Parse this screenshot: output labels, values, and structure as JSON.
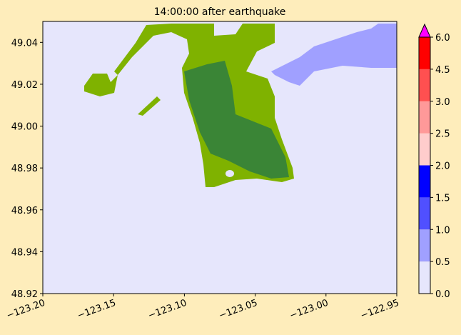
{
  "chart_data": {
    "type": "map",
    "title": "14:00:00 after earthquake",
    "xlim": [
      -123.2,
      -122.95
    ],
    "xticks": [
      {
        "value": -123.2,
        "label": "−123.20"
      },
      {
        "value": -123.15,
        "label": "−123.15"
      },
      {
        "value": -123.1,
        "label": "−123.10"
      },
      {
        "value": -123.05,
        "label": "−123.05"
      },
      {
        "value": -123.0,
        "label": "−123.00"
      },
      {
        "value": -122.95,
        "label": "−122.95"
      }
    ],
    "ylim": [
      48.92,
      49.05
    ],
    "yticks": [
      48.92,
      48.94,
      48.96,
      48.98,
      {
        "value": 49.0,
        "label": "49.00"
      },
      49.02,
      49.04
    ],
    "colorbar": {
      "levels": [
        {
          "value": 0,
          "label": "0.0"
        },
        0.5,
        {
          "value": 1,
          "label": "1.0"
        },
        1.5,
        {
          "value": 2,
          "label": "2.0"
        },
        2.5,
        {
          "value": 3,
          "label": "3.0"
        },
        4.5,
        {
          "value": 6,
          "label": "6.0"
        }
      ],
      "colors": [
        "#e6e6fc",
        "#a0a0ff",
        "#5050ff",
        "#0000ff",
        "#ffcccc",
        "#ff9999",
        "#ff5050",
        "#ff0000"
      ],
      "extend_color": "#ff00ff"
    }
  }
}
